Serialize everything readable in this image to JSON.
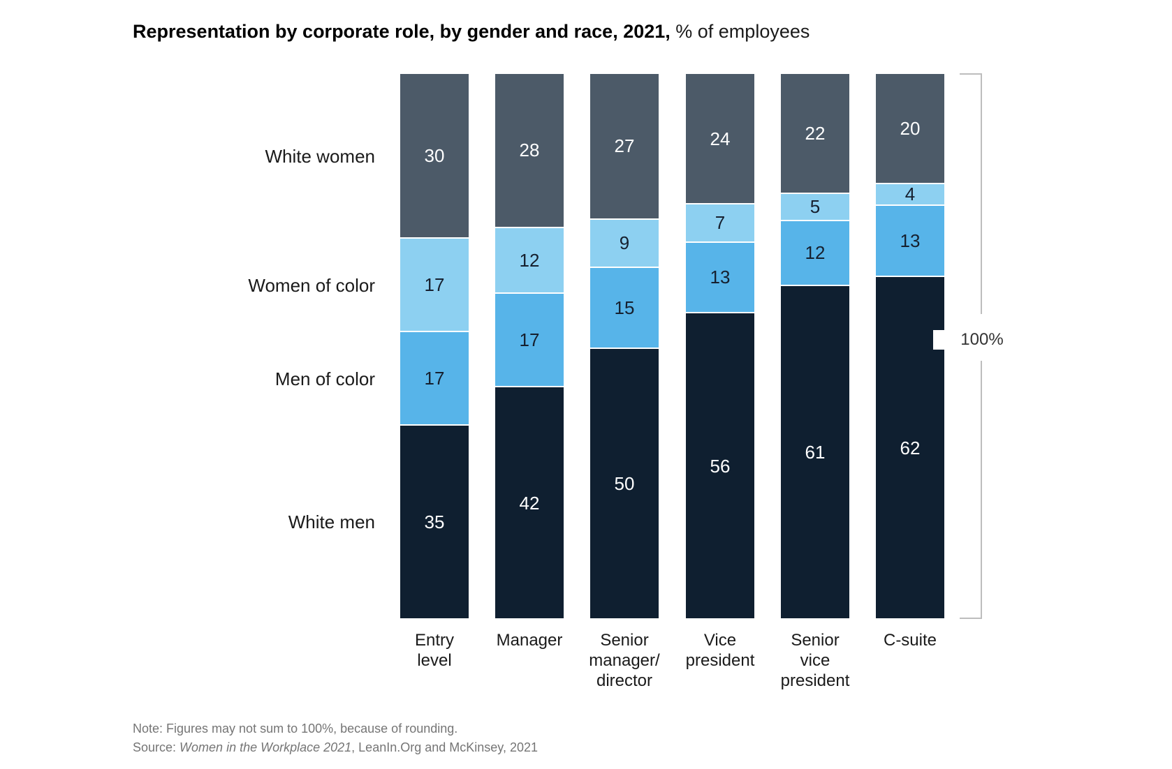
{
  "title": {
    "bold": "Representation by corporate role, by gender and race, 2021,",
    "regular": " % of employees"
  },
  "chart_data": {
    "type": "bar",
    "stacked": true,
    "title": "Representation by corporate role, by gender and race, 2021, % of employees",
    "xlabel": "",
    "ylabel": "",
    "ylim": [
      0,
      100
    ],
    "unit": "%",
    "legend_position": "left",
    "grid": false,
    "axis_annotation": "100%",
    "categories": [
      "Entry\nlevel",
      "Manager",
      "Senior\nmanager/\ndirector",
      "Vice\npresident",
      "Senior\nvice\npresident",
      "C-suite"
    ],
    "series": [
      {
        "name": "White women",
        "key": "white-women",
        "color": "#4C5A68",
        "value_color": "#FFFFFF",
        "values": [
          30,
          28,
          27,
          24,
          22,
          20
        ]
      },
      {
        "name": "Women of color",
        "key": "women-of-color",
        "color": "#8DD0F1",
        "value_color": "#16202F",
        "values": [
          17,
          12,
          9,
          7,
          5,
          4
        ]
      },
      {
        "name": "Men of color",
        "key": "men-of-color",
        "color": "#57B4E9",
        "value_color": "#16202F",
        "values": [
          17,
          17,
          15,
          13,
          12,
          13
        ]
      },
      {
        "name": "White men",
        "key": "white-men",
        "color": "#0F1F30",
        "value_color": "#FFFFFF",
        "values": [
          35,
          42,
          50,
          56,
          61,
          62
        ]
      }
    ]
  },
  "footer": {
    "note": "Note: Figures may not sum to 100%, because of rounding.",
    "source_prefix": "Source: ",
    "source_italic": "Women in the Workplace 2021",
    "source_suffix": ", LeanIn.Org and McKinsey, 2021"
  }
}
